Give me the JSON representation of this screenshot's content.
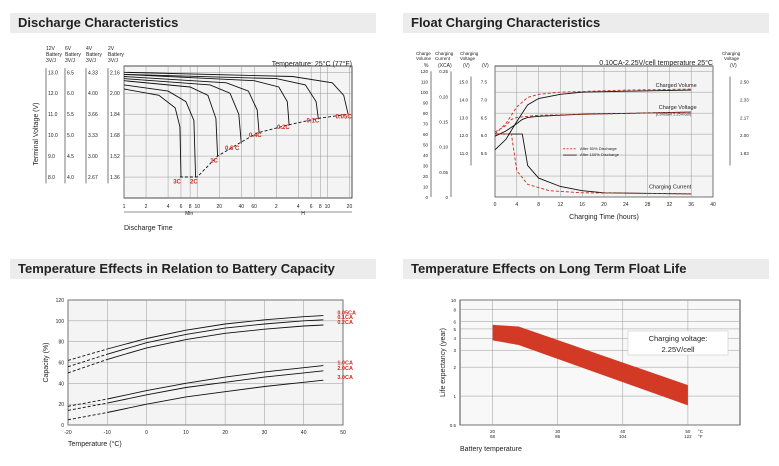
{
  "panels": {
    "discharge": {
      "title": "Discharge Characteristics"
    },
    "float": {
      "title": "Float Charging Characteristics"
    },
    "temp_capacity": {
      "title": "Temperature Effects in Relation to Battery Capacity"
    },
    "float_life": {
      "title": "Temperature Effects on Long Term Float Life"
    }
  },
  "chart_data": [
    {
      "id": "discharge",
      "type": "line",
      "note": "Temperature: 25°C (77°F)",
      "xlabel": "Discharge Time",
      "ylabel": "Terminal Voltage (V)",
      "voltage_column_headers": [
        "12V Battery 3V/J",
        "6V Battery 3V/J",
        "4V Battery 3V/J",
        "2V Battery 3V/J"
      ],
      "voltage_ticks": [
        [
          "13.0",
          "6.5",
          "4.33",
          "2.16"
        ],
        [
          "12.0",
          "6.0",
          "4.00",
          "2.00"
        ],
        [
          "11.0",
          "5.5",
          "3.66",
          "1.84"
        ],
        [
          "10.0",
          "5.0",
          "3.33",
          "1.68"
        ],
        [
          "9.0",
          "4.5",
          "3.00",
          "1.52"
        ],
        [
          "8.0",
          "4.0",
          "2.67",
          "1.36"
        ]
      ],
      "ylim": [
        7.0,
        13.3
      ],
      "x_scale": "log",
      "x_ticks_min": [
        "1",
        "2",
        "4",
        "6",
        "8",
        "10",
        "20",
        "40",
        "60"
      ],
      "x_ticks_h": [
        "2",
        "4",
        "6",
        "8",
        "10",
        "20"
      ],
      "x_units": [
        "Min",
        "H"
      ],
      "series": [
        {
          "name": "3C",
          "points": [
            [
              1,
              12.2
            ],
            [
              3,
              11.9
            ],
            [
              5,
              11.3
            ],
            [
              5.8,
              10.4
            ],
            [
              6,
              8.0
            ]
          ]
        },
        {
          "name": "2C",
          "points": [
            [
              1,
              12.4
            ],
            [
              4,
              12.1
            ],
            [
              7,
              11.6
            ],
            [
              9,
              10.7
            ],
            [
              9.5,
              8.0
            ]
          ]
        },
        {
          "name": "1C",
          "points": [
            [
              1,
              12.6
            ],
            [
              8,
              12.3
            ],
            [
              14,
              11.9
            ],
            [
              18,
              10.8
            ],
            [
              19,
              9.0
            ]
          ]
        },
        {
          "name": "0.6 C",
          "points": [
            [
              1,
              12.7
            ],
            [
              15,
              12.4
            ],
            [
              28,
              12.0
            ],
            [
              37,
              11.0
            ],
            [
              40,
              9.6
            ]
          ]
        },
        {
          "name": "0.4C",
          "points": [
            [
              1,
              12.8
            ],
            [
              25,
              12.5
            ],
            [
              50,
              12.1
            ],
            [
              66,
              11.2
            ],
            [
              70,
              10.1
            ]
          ]
        },
        {
          "name": "0.2C",
          "points": [
            [
              1,
              12.9
            ],
            [
              60,
              12.6
            ],
            [
              130,
              12.3
            ],
            [
              170,
              11.6
            ],
            [
              180,
              10.5
            ]
          ]
        },
        {
          "name": "0.1C",
          "points": [
            [
              1,
              12.9
            ],
            [
              120,
              12.7
            ],
            [
              300,
              12.4
            ],
            [
              420,
              11.6
            ],
            [
              450,
              10.8
            ]
          ]
        },
        {
          "name": "0.05C",
          "points": [
            [
              1,
              13.0
            ],
            [
              200,
              12.8
            ],
            [
              700,
              12.5
            ],
            [
              1000,
              11.9
            ],
            [
              1150,
              11.0
            ]
          ]
        }
      ],
      "cutoff_line": [
        [
          5.8,
          8.0
        ],
        [
          10,
          8.0
        ],
        [
          19,
          9.0
        ],
        [
          37,
          9.6
        ],
        [
          66,
          10.1
        ],
        [
          180,
          10.5
        ],
        [
          450,
          10.8
        ],
        [
          1150,
          11.0
        ]
      ],
      "annotations": [
        "3C",
        "2C",
        "1C",
        "0.6 C",
        "0.4C",
        "0.2C",
        "0.1C",
        "0.05C"
      ]
    },
    {
      "id": "float",
      "type": "line",
      "note": "0.10CA-2.25V/cell  temperature 25°C",
      "xlabel": "Charging Time (hours)",
      "left_axis_headers": [
        "Charge Volume %",
        "Charging Current (XCA)",
        "(V)"
      ],
      "right_axis_header": "Charging Voltage (V)",
      "volume_ticks": [
        "120",
        "110",
        "100",
        "90",
        "80",
        "70",
        "60",
        "50",
        "40",
        "30",
        "20",
        "10",
        "0"
      ],
      "current_ticks": [
        "0.25",
        "0.20",
        "0.15",
        "0.10",
        "0.05",
        "0"
      ],
      "left_voltage_ticks": [
        "15.0",
        "14.0",
        "13.0",
        "12.0",
        "11.0"
      ],
      "inner_voltage_ticks": [
        "7.5",
        "7.0",
        "6.5",
        "6.0",
        "5.5"
      ],
      "right_voltage_ticks": [
        "2.50",
        "2.33",
        "2.17",
        "2.00",
        "1.83"
      ],
      "x": [
        0,
        4,
        8,
        12,
        16,
        20,
        24,
        28,
        32,
        36,
        40
      ],
      "xlim": [
        0,
        40
      ],
      "legend": [
        "After 50% Discharge",
        "After 100% Discharge"
      ],
      "labels": {
        "volume": "Charged Volume",
        "voltage": "Charge Voltage",
        "voltage_sub": "(Constant 2.25V/cell)",
        "current": "Charging Current"
      },
      "series": [
        {
          "name": "Charged Volume (100%)",
          "style": "solid",
          "points": [
            [
              0,
              45
            ],
            [
              2,
              55
            ],
            [
              4,
              72
            ],
            [
              6,
              88
            ],
            [
              8,
              94
            ],
            [
              12,
              98
            ],
            [
              16,
              100
            ],
            [
              24,
              101
            ],
            [
              36,
              102
            ]
          ]
        },
        {
          "name": "Charged Volume (50%)",
          "style": "dashed",
          "points": [
            [
              0,
              60
            ],
            [
              2,
              70
            ],
            [
              4,
              86
            ],
            [
              6,
              95
            ],
            [
              8,
              98
            ],
            [
              12,
              100
            ],
            [
              24,
              102
            ],
            [
              36,
              103
            ]
          ]
        },
        {
          "name": "Charge Voltage (100%)",
          "style": "solid",
          "points": [
            [
              0,
              58
            ],
            [
              2,
              63
            ],
            [
              4,
              70
            ],
            [
              5,
              74
            ],
            [
              6,
              76
            ],
            [
              8,
              77
            ],
            [
              16,
              79
            ],
            [
              36,
              81
            ]
          ]
        },
        {
          "name": "Charge Voltage (50%)",
          "style": "dashed",
          "points": [
            [
              0,
              62
            ],
            [
              2,
              68
            ],
            [
              3,
              74
            ],
            [
              4,
              76
            ],
            [
              8,
              78
            ],
            [
              36,
              81
            ]
          ]
        },
        {
          "name": "Charging Current (100%)",
          "style": "solid",
          "points": [
            [
              0,
              60
            ],
            [
              5,
              60
            ],
            [
              6,
              30
            ],
            [
              8,
              18
            ],
            [
              12,
              10
            ],
            [
              16,
              6
            ],
            [
              20,
              4
            ],
            [
              36,
              3
            ]
          ]
        },
        {
          "name": "Charging Current (50%)",
          "style": "dashed",
          "points": [
            [
              0,
              60
            ],
            [
              3,
              60
            ],
            [
              4,
              25
            ],
            [
              6,
              12
            ],
            [
              10,
              6
            ],
            [
              16,
              4
            ],
            [
              36,
              3
            ]
          ]
        }
      ]
    },
    {
      "id": "temp_capacity",
      "type": "line",
      "xlabel": "Temperature (°C)",
      "ylabel": "Capacity (%)",
      "x_ticks": [
        "-20",
        "-10",
        "0",
        "10",
        "20",
        "30",
        "40",
        "50"
      ],
      "y_ticks": [
        "0",
        "20",
        "40",
        "60",
        "80",
        "100",
        "120"
      ],
      "xlim": [
        -20,
        50
      ],
      "ylim": [
        0,
        120
      ],
      "series": [
        {
          "name": "0.05CA",
          "points": [
            [
              -20,
              62
            ],
            [
              -10,
              73
            ],
            [
              0,
              83
            ],
            [
              10,
              91
            ],
            [
              20,
              97
            ],
            [
              30,
              101
            ],
            [
              40,
              104
            ],
            [
              45,
              105
            ]
          ]
        },
        {
          "name": "0.1CA",
          "points": [
            [
              -20,
              56
            ],
            [
              -10,
              68
            ],
            [
              0,
              79
            ],
            [
              10,
              87
            ],
            [
              20,
              93
            ],
            [
              30,
              97
            ],
            [
              40,
              100
            ],
            [
              45,
              101
            ]
          ]
        },
        {
          "name": "0.2CA",
          "points": [
            [
              -20,
              50
            ],
            [
              -10,
              63
            ],
            [
              0,
              74
            ],
            [
              10,
              82
            ],
            [
              20,
              88
            ],
            [
              30,
              92
            ],
            [
              40,
              95
            ],
            [
              45,
              96
            ]
          ]
        },
        {
          "name": "1.0CA",
          "points": [
            [
              -20,
              18
            ],
            [
              -10,
              25
            ],
            [
              0,
              33
            ],
            [
              10,
              40
            ],
            [
              20,
              46
            ],
            [
              30,
              51
            ],
            [
              40,
              55
            ],
            [
              45,
              57
            ]
          ]
        },
        {
          "name": "2.0CA",
          "points": [
            [
              -20,
              14
            ],
            [
              -10,
              21
            ],
            [
              0,
              29
            ],
            [
              10,
              36
            ],
            [
              20,
              41
            ],
            [
              30,
              46
            ],
            [
              40,
              50
            ],
            [
              45,
              52
            ]
          ]
        },
        {
          "name": "3.0CA",
          "points": [
            [
              -20,
              5
            ],
            [
              -10,
              12
            ],
            [
              0,
              20
            ],
            [
              10,
              27
            ],
            [
              20,
              32
            ],
            [
              30,
              37
            ],
            [
              40,
              41
            ],
            [
              45,
              43
            ]
          ]
        }
      ],
      "colors": {
        "label": "#cc2a1f"
      }
    },
    {
      "id": "float_life",
      "type": "area",
      "xlabel": "Battery temperature",
      "ylabel": "Life expectancy (year)",
      "x_ticks": [
        [
          "20",
          "68"
        ],
        [
          "30",
          "86"
        ],
        [
          "40",
          "104"
        ],
        [
          "50",
          "122"
        ]
      ],
      "x_units": [
        "°C",
        "°F"
      ],
      "y_ticks": [
        "0.5",
        "1",
        "2",
        "3",
        "4",
        "5",
        "6",
        "8",
        "10"
      ],
      "xlim": [
        15,
        58
      ],
      "ylim_log": [
        0.5,
        10
      ],
      "band": {
        "x": [
          20,
          50
        ],
        "upper": [
          5.5,
          1.3
        ],
        "lower": [
          3.8,
          0.8
        ]
      },
      "legend_box": [
        "Charging voltage:",
        "2.25V/cell"
      ],
      "colors": {
        "band": "#d33a26"
      }
    }
  ]
}
